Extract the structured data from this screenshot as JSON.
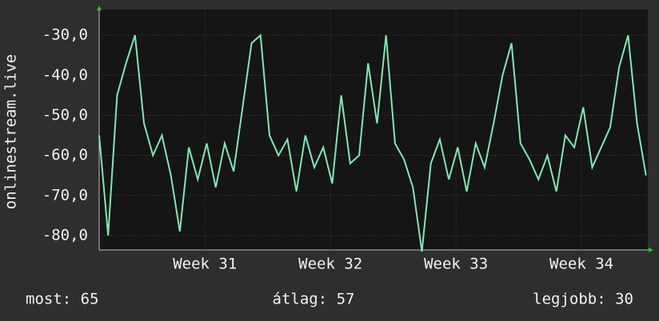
{
  "chart_data": {
    "type": "line",
    "y_label": "onlinestream.live",
    "x": [
      0,
      0.5,
      1,
      1.5,
      2,
      2.5,
      3,
      3.5,
      4,
      4.5,
      5,
      5.5,
      6,
      6.5,
      7,
      7.5,
      8,
      8.5,
      9,
      9.5,
      10,
      10.5,
      11,
      11.5,
      12,
      12.5,
      13,
      13.5,
      14,
      14.5,
      15,
      15.5,
      16,
      16.5,
      17,
      17.5,
      18,
      18.5,
      19,
      19.5,
      20,
      20.5,
      21,
      21.5,
      22,
      22.5,
      23,
      23.5,
      24,
      24.5,
      25,
      25.5,
      26,
      26.5,
      27,
      27.5,
      28,
      28.5,
      29,
      29.5,
      30,
      30.5
    ],
    "series": [
      {
        "color": "#7ee8b4",
        "values": [
          -55,
          -80,
          -45,
          -37,
          -30,
          -52,
          -60,
          -55,
          -65,
          -79,
          -58,
          -66,
          -57,
          -68,
          -57,
          -64,
          -48,
          -32,
          -30,
          -55,
          -60,
          -56,
          -69,
          -55,
          -63,
          -58,
          -67,
          -45,
          -62,
          -60,
          -37,
          -52,
          -30,
          -57,
          -61,
          -68,
          -84,
          -62,
          -56,
          -66,
          -58,
          -69,
          -57,
          -63,
          -52,
          -40,
          -32,
          -57,
          -61,
          -66,
          -60,
          -69,
          -55,
          -58,
          -48,
          -63,
          -58,
          -53,
          -38,
          -30,
          -52,
          -65
        ]
      }
    ],
    "xlim": [
      0,
      30.6
    ],
    "xticks": [
      {
        "value": 5.9,
        "label": "Week 31"
      },
      {
        "value": 12.9,
        "label": "Week 32"
      },
      {
        "value": 19.9,
        "label": "Week 33"
      },
      {
        "value": 26.9,
        "label": "Week 34"
      }
    ],
    "ylim": [
      -83.6,
      -23.6
    ],
    "yticks": [
      {
        "value": -80,
        "label": "-80,0"
      },
      {
        "value": -70,
        "label": "-70,0"
      },
      {
        "value": -60,
        "label": "-60,0"
      },
      {
        "value": -50,
        "label": "-50,0"
      },
      {
        "value": -40,
        "label": "-40,0"
      },
      {
        "value": -30,
        "label": "-30,0"
      }
    ],
    "grid": true,
    "footer": [
      "most: 65",
      "átlag: 57",
      "legjobb: 30"
    ]
  }
}
